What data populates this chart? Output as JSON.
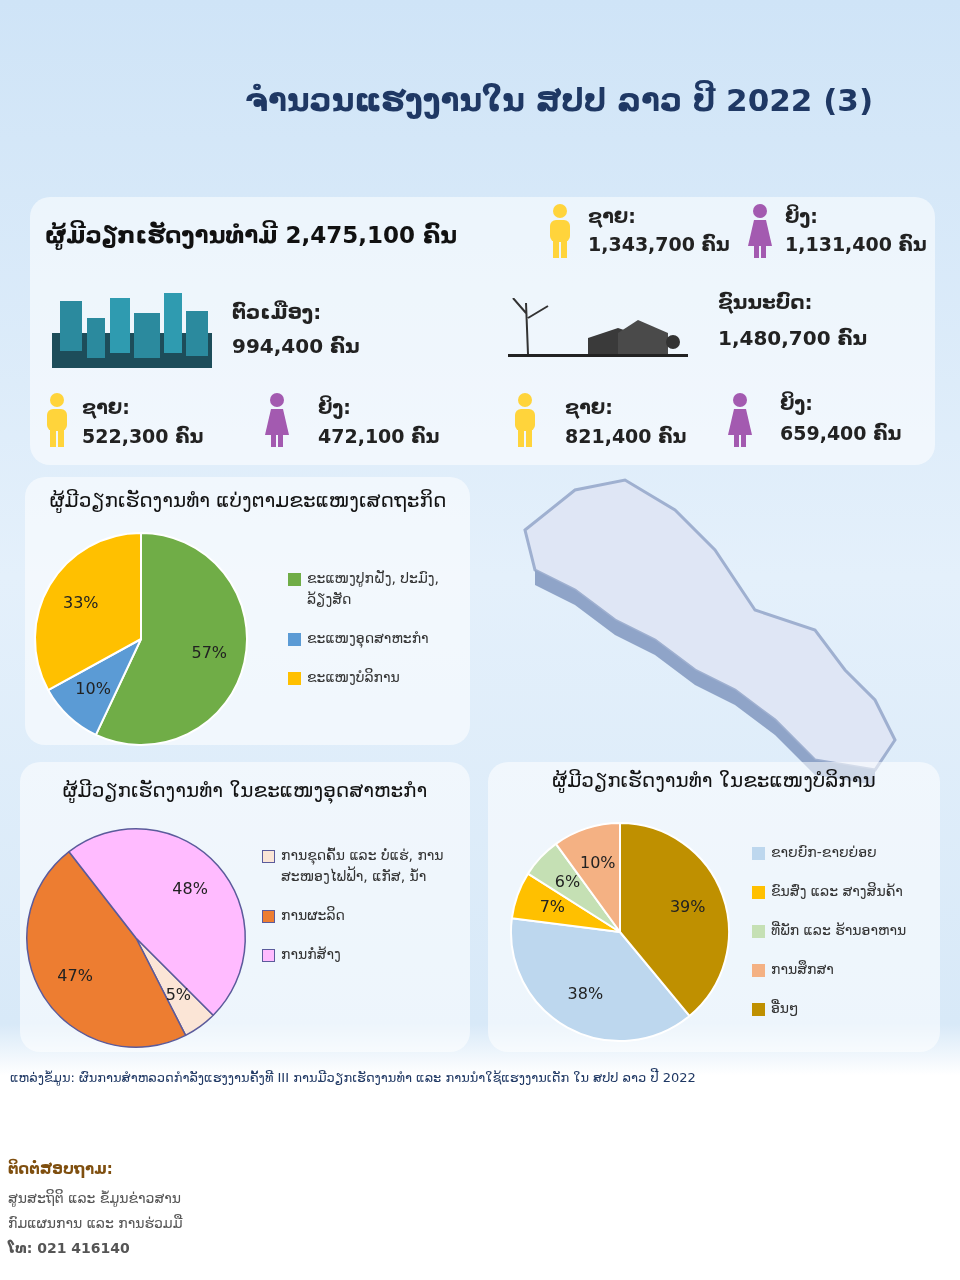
{
  "chart_data": [
    {
      "type": "other",
      "title": "ຈຳນວນແຮງງານໃນ ສປປ ລາວ ປີ 2022 (3)",
      "annotations": [
        "ຜູ້ມີວຽກເຮັດງານທຳມີ  2,475,100 ຄົນ",
        "ຊາຍ:",
        "1,343,700 ຄົນ",
        "ຍິງ:",
        "1,131,400 ຄົນ",
        "ຕົວເມືອງ:",
        "994,400 ຄົນ",
        "ຊົນນະບົດ:",
        "1,480,700 ຄົນ",
        "ຊາຍ:",
        "522,300 ຄົນ",
        "ຍິງ:",
        "472,100 ຄົນ",
        "ຊາຍ:",
        "821,400 ຄົນ",
        "ຍິງ:",
        "659,400 ຄົນ",
        "ແຫລ່ງຂໍ້ມູນ: ຜົນການສຳຫລວດກຳລັງແຮງງານຄັ້ງທີ III ການມີວຽກເຮັດງານທຳ ແລະ ການນຳໃຊ້ແຮງງານເດັກ ໃນ ສປປ ລາວ ປີ 2022",
        "ຕິດຕໍ່ສອບຖາມ:",
        "ສູນສະຖິຕິ ແລະ ຂໍ້ມູນຂ່າວສານ",
        "ກົມແຜນການ ແລະ ການຮ່ວມມື",
        "ໂທ: 021 416140"
      ]
    },
    {
      "type": "pie",
      "title": "ຜູ້ມີວຽກເຮັດງານທຳ ແບ່ງຕາມຂະແໜງເສດຖະກິດ",
      "categories": [
        "ຂະແໜງປູກຝັງ, ປະມົງ, ລ້ຽງສັດ",
        "ຂະແໜງອຸດສາຫະກຳ",
        "ຂະແໜງບໍລິການ"
      ],
      "values": [
        57,
        10,
        33
      ],
      "value_labels": [
        "57%",
        "10%",
        "33%"
      ],
      "colors": [
        "#70ad47",
        "#5b9bd5",
        "#ffc000"
      ],
      "legend": "right"
    },
    {
      "type": "pie",
      "title": "ຜູ້ມີວຽກເຮັດງານທຳ ໃນຂະແໜງອຸດສາຫະກຳ",
      "categories": [
        "ການຂຸດຄົ້ນ ແລະ ບໍ່ແຮ່, ການສະໜອງໄຟຟ້າ, ແກັສ, ນ້ຳ",
        "ການຜະລິດ",
        "ການກໍ່ສ້າງ"
      ],
      "values": [
        5,
        47,
        48
      ],
      "value_labels": [
        "5%",
        "47%",
        "48%"
      ],
      "colors": [
        "#fbe5d6",
        "#ed7d31",
        "#ffbbff"
      ],
      "legend": "right"
    },
    {
      "type": "pie",
      "title": "ຜູ້ມີວຽກເຮັດງານທຳ ໃນຂະແໜງບໍລິການ",
      "categories": [
        "ຂາຍຍົກ-ຂາຍຍ່ອຍ",
        "ຂົນສົ່ງ ແລະ ສາງສິນຄ້າ",
        "ທີ່ພັກ ແລະ ຮ້ານອາຫານ",
        "ການສຶກສາ",
        "ອື່ນໆ"
      ],
      "values": [
        38,
        7,
        6,
        10,
        39
      ],
      "value_labels": [
        "38%",
        "7%",
        "6%",
        "10%",
        "39%"
      ],
      "colors": [
        "#bdd7ee",
        "#ffc000",
        "#c5e0b4",
        "#f4b183",
        "#bf9000"
      ],
      "legend": "right"
    }
  ]
}
